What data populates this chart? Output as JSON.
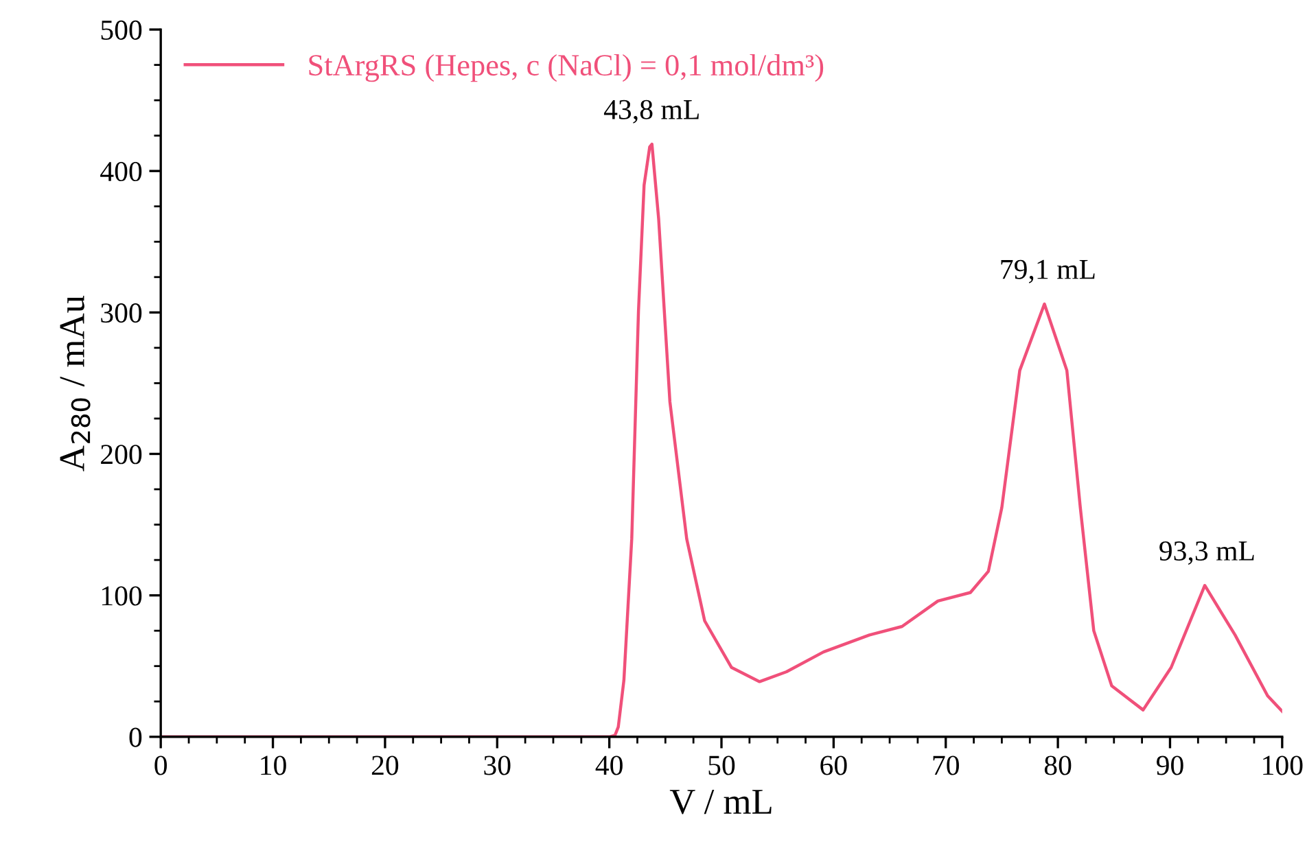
{
  "chart_data": {
    "type": "line",
    "xlabel": "V / mL",
    "ylabel": "A$_{280}$ / mAu",
    "xlim": [
      0,
      100
    ],
    "xticks": [
      0,
      10,
      20,
      30,
      40,
      50,
      60,
      70,
      80,
      90,
      100
    ],
    "ylim": [
      0,
      500
    ],
    "yticks": [
      0,
      100,
      200,
      300,
      400,
      500
    ],
    "grid": false,
    "legend": "top left",
    "marker": "none",
    "line_style": "solid",
    "series": [
      {
        "name": "StArgRS (Hepes, c (NaCl) = 0,1 mol/dm³)",
        "color": "#f0507a",
        "x": [
          0,
          10,
          20,
          30,
          40,
          40.5,
          40.8,
          41.3,
          42.0,
          42.6,
          43.1,
          43.6,
          43.8,
          44.4,
          45.4,
          46.9,
          48.5,
          50.9,
          53.4,
          55.8,
          59.1,
          63.2,
          66.1,
          69.3,
          72.2,
          73.8,
          75.0,
          76.6,
          78.8,
          80.8,
          82.0,
          83.2,
          84.8,
          87.6,
          90.1,
          93.1,
          95.8,
          98.7,
          100
        ],
        "values": [
          0,
          0,
          0,
          0,
          0,
          1,
          7,
          40,
          140,
          301,
          390,
          417,
          419,
          366,
          237,
          140,
          82,
          49,
          39,
          46,
          60,
          72,
          78,
          96,
          102,
          117,
          162,
          259,
          306,
          259,
          162,
          75,
          36,
          19,
          49,
          107,
          72,
          29,
          18
        ]
      }
    ],
    "annotations": [
      {
        "text": "43,8 mL",
        "x": 43.8,
        "y": 419
      },
      {
        "text": "79,1 mL",
        "x": 79.1,
        "y": 306
      },
      {
        "text": "93,3 mL",
        "x": 93.3,
        "y": 107
      }
    ]
  }
}
